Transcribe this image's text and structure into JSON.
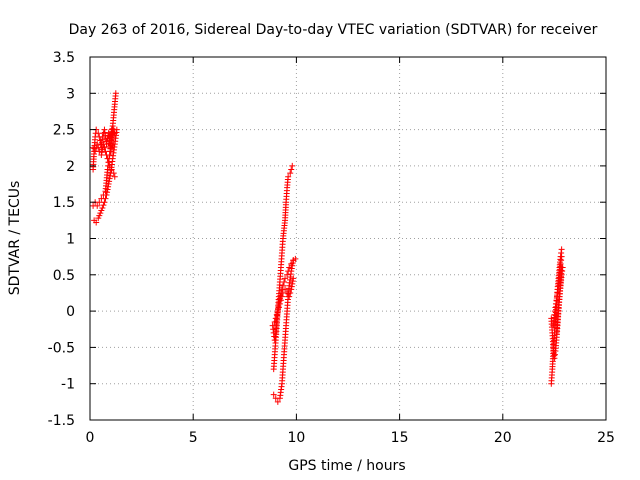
{
  "chart_data": {
    "type": "scatter",
    "title": "Day 263 of 2016, Sidereal Day-to-day VTEC variation (SDTVAR) for receiver",
    "xlabel": "GPS time / hours",
    "ylabel": "SDTVAR / TECUs",
    "xlim": [
      0,
      25
    ],
    "ylim": [
      -1.5,
      3.5
    ],
    "x_ticks": [
      0,
      5,
      10,
      15,
      20,
      25
    ],
    "y_ticks": [
      -1.5,
      -1,
      -0.5,
      0,
      0.5,
      1,
      1.5,
      2,
      2.5,
      3,
      3.5
    ],
    "x_tick_labels": [
      "0",
      "5",
      "10",
      "15",
      "20",
      "25"
    ],
    "y_tick_labels": [
      "-1.5",
      "-1",
      "-0.5",
      "0",
      "0.5",
      "1",
      "1.5",
      "2",
      "2.5",
      "3",
      "3.5"
    ],
    "grid": true,
    "marker": "plus",
    "color": "#ff0000",
    "series": [
      {
        "segments": [
          [
            [
              0.15,
              1.95
            ],
            [
              0.2,
              2.2
            ],
            [
              0.25,
              2.4
            ],
            [
              0.3,
              2.5
            ],
            [
              0.4,
              2.45
            ],
            [
              0.5,
              2.35
            ],
            [
              0.55,
              2.25
            ],
            [
              0.6,
              2.4
            ],
            [
              0.7,
              2.5
            ],
            [
              0.8,
              2.3
            ],
            [
              0.9,
              2.45
            ],
            [
              1.0,
              2.2
            ],
            [
              1.05,
              2.5
            ],
            [
              1.1,
              2.4
            ],
            [
              1.15,
              2.5
            ],
            [
              1.2,
              2.45
            ]
          ],
          [
            [
              0.15,
              2.25
            ],
            [
              0.25,
              2.2
            ],
            [
              0.35,
              2.3
            ],
            [
              0.45,
              2.2
            ],
            [
              0.55,
              2.15
            ],
            [
              0.65,
              2.3
            ],
            [
              0.75,
              2.2
            ],
            [
              0.85,
              2.1
            ],
            [
              0.95,
              2.0
            ],
            [
              1.05,
              1.95
            ],
            [
              1.15,
              1.9
            ],
            [
              1.2,
              1.85
            ]
          ],
          [
            [
              0.15,
              1.45
            ],
            [
              0.25,
              1.5
            ],
            [
              0.35,
              1.45
            ],
            [
              0.45,
              1.5
            ],
            [
              0.55,
              1.55
            ],
            [
              0.65,
              1.6
            ],
            [
              0.75,
              1.65
            ],
            [
              0.8,
              1.8
            ],
            [
              0.85,
              1.95
            ],
            [
              0.9,
              2.05
            ],
            [
              0.95,
              2.15
            ],
            [
              1.0,
              2.25
            ],
            [
              1.05,
              2.4
            ],
            [
              1.1,
              2.55
            ],
            [
              1.15,
              2.7
            ],
            [
              1.2,
              2.85
            ],
            [
              1.25,
              3.0
            ]
          ],
          [
            [
              0.2,
              1.25
            ],
            [
              0.3,
              1.22
            ],
            [
              0.4,
              1.28
            ],
            [
              0.5,
              1.35
            ],
            [
              0.6,
              1.42
            ],
            [
              0.7,
              1.5
            ],
            [
              0.8,
              1.6
            ],
            [
              0.9,
              1.75
            ],
            [
              1.0,
              1.9
            ],
            [
              1.1,
              2.1
            ],
            [
              1.2,
              2.3
            ],
            [
              1.3,
              2.5
            ]
          ]
        ]
      },
      {
        "segments": [
          [
            [
              8.9,
              -0.8
            ],
            [
              8.95,
              -0.6
            ],
            [
              9.0,
              -0.4
            ],
            [
              9.05,
              -0.2
            ],
            [
              9.1,
              0.0
            ],
            [
              9.15,
              0.2
            ],
            [
              9.2,
              0.4
            ],
            [
              9.25,
              0.6
            ],
            [
              9.3,
              0.8
            ],
            [
              9.35,
              1.0
            ],
            [
              9.45,
              1.25
            ],
            [
              9.5,
              1.5
            ],
            [
              9.55,
              1.7
            ],
            [
              9.6,
              1.85
            ],
            [
              9.7,
              1.9
            ],
            [
              9.8,
              2.0
            ]
          ],
          [
            [
              8.85,
              -0.2
            ],
            [
              8.9,
              -0.3
            ],
            [
              8.95,
              -0.4
            ],
            [
              9.0,
              -0.3
            ],
            [
              9.05,
              -0.1
            ],
            [
              9.15,
              0.1
            ],
            [
              9.25,
              0.25
            ],
            [
              9.35,
              0.35
            ],
            [
              9.45,
              0.45
            ],
            [
              9.55,
              0.5
            ],
            [
              9.65,
              0.6
            ],
            [
              9.75,
              0.65
            ],
            [
              9.85,
              0.7
            ]
          ],
          [
            [
              8.9,
              -1.15
            ],
            [
              9.0,
              -1.2
            ],
            [
              9.1,
              -1.25
            ],
            [
              9.2,
              -1.2
            ],
            [
              9.3,
              -1.0
            ],
            [
              9.35,
              -0.8
            ],
            [
              9.4,
              -0.6
            ],
            [
              9.45,
              -0.4
            ],
            [
              9.5,
              -0.2
            ],
            [
              9.55,
              0.0
            ],
            [
              9.6,
              0.2
            ],
            [
              9.65,
              0.35
            ],
            [
              9.75,
              0.55
            ],
            [
              9.85,
              0.7
            ],
            [
              9.95,
              0.72
            ]
          ],
          [
            [
              8.95,
              -0.15
            ],
            [
              9.05,
              -0.05
            ],
            [
              9.15,
              0.05
            ],
            [
              9.25,
              0.15
            ],
            [
              9.35,
              0.25
            ],
            [
              9.45,
              0.3
            ],
            [
              9.55,
              0.25
            ],
            [
              9.65,
              0.2
            ],
            [
              9.75,
              0.3
            ],
            [
              9.85,
              0.45
            ]
          ]
        ]
      },
      {
        "segments": [
          [
            [
              22.35,
              -1.0
            ],
            [
              22.4,
              -0.8
            ],
            [
              22.45,
              -0.55
            ],
            [
              22.5,
              -0.3
            ],
            [
              22.55,
              -0.1
            ],
            [
              22.6,
              0.1
            ],
            [
              22.65,
              0.3
            ],
            [
              22.7,
              0.45
            ],
            [
              22.75,
              0.6
            ],
            [
              22.8,
              0.75
            ],
            [
              22.85,
              0.85
            ]
          ],
          [
            [
              22.35,
              -0.1
            ],
            [
              22.4,
              -0.3
            ],
            [
              22.45,
              -0.5
            ],
            [
              22.5,
              -0.65
            ],
            [
              22.55,
              -0.55
            ],
            [
              22.6,
              -0.4
            ],
            [
              22.65,
              -0.2
            ],
            [
              22.7,
              0.0
            ],
            [
              22.75,
              0.2
            ],
            [
              22.8,
              0.4
            ],
            [
              22.85,
              0.6
            ]
          ],
          [
            [
              22.45,
              -0.2
            ],
            [
              22.5,
              -0.05
            ],
            [
              22.55,
              0.05
            ],
            [
              22.6,
              0.15
            ],
            [
              22.65,
              0.25
            ],
            [
              22.7,
              0.35
            ],
            [
              22.75,
              0.5
            ],
            [
              22.8,
              0.65
            ],
            [
              22.85,
              0.75
            ]
          ],
          [
            [
              22.6,
              -0.3
            ],
            [
              22.65,
              -0.15
            ],
            [
              22.7,
              0.05
            ],
            [
              22.75,
              0.2
            ],
            [
              22.8,
              0.35
            ],
            [
              22.85,
              0.5
            ],
            [
              22.9,
              0.6
            ]
          ]
        ]
      }
    ]
  }
}
